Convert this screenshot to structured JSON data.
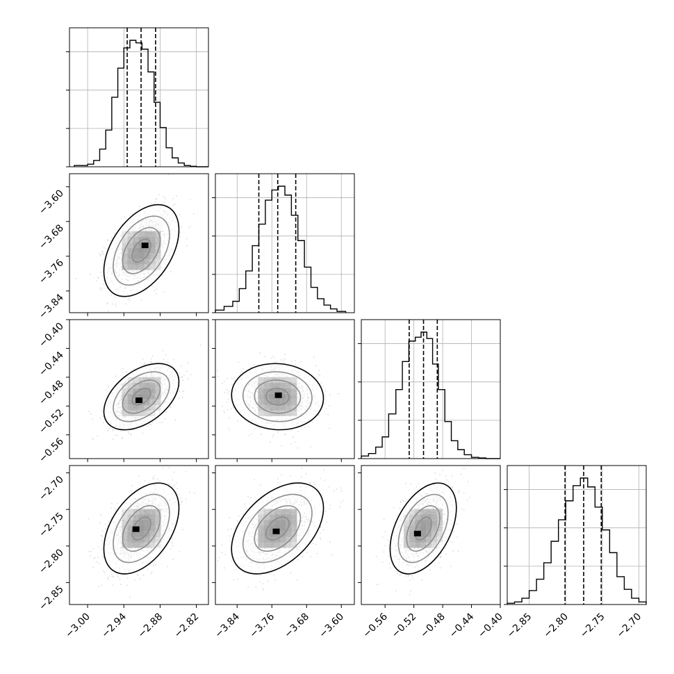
{
  "chart_data": {
    "type": "corner",
    "parameters": [
      {
        "range": [
          -3.03,
          -2.8
        ],
        "ticks": [
          -3.0,
          -2.94,
          -2.88,
          -2.82
        ],
        "tick_labels": [
          "−3.00",
          "−2.94",
          "−2.88",
          "−2.82"
        ],
        "hist_bin_edges": [
          -3.022,
          -3.0,
          -2.99,
          -2.98,
          -2.97,
          -2.96,
          -2.95,
          -2.94,
          -2.93,
          -2.92,
          -2.91,
          -2.9,
          -2.89,
          -2.88,
          -2.87,
          -2.86,
          -2.85,
          -2.84,
          -2.83,
          -2.82,
          -2.81,
          -2.8
        ],
        "hist_counts": [
          0.01,
          0.02,
          0.05,
          0.14,
          0.29,
          0.55,
          0.78,
          0.94,
          1.0,
          0.98,
          0.93,
          0.75,
          0.51,
          0.31,
          0.15,
          0.07,
          0.03,
          0.01,
          0.004,
          0.0
        ],
        "quantiles": [
          -2.9345,
          -2.9115,
          -2.8875
        ]
      },
      {
        "range": [
          -3.89,
          -3.57
        ],
        "ticks": [
          -3.84,
          -3.76,
          -3.68,
          -3.6
        ],
        "tick_labels": [
          "−3.84",
          "−3.76",
          "−3.68",
          "−3.60"
        ],
        "hist_bin_edges": [
          -3.89,
          -3.87,
          -3.85,
          -3.835,
          -3.82,
          -3.805,
          -3.79,
          -3.775,
          -3.76,
          -3.745,
          -3.73,
          -3.715,
          -3.7,
          -3.685,
          -3.67,
          -3.655,
          -3.64,
          -3.625,
          -3.61,
          -3.59
        ],
        "hist_counts": [
          0.02,
          0.05,
          0.09,
          0.19,
          0.33,
          0.53,
          0.7,
          0.89,
          0.97,
          1.0,
          0.93,
          0.77,
          0.57,
          0.36,
          0.2,
          0.11,
          0.06,
          0.03,
          0.01
        ],
        "quantiles": [
          -3.79,
          -3.7465,
          -3.705
        ]
      },
      {
        "range": [
          -0.593,
          -0.4
        ],
        "ticks": [
          -0.56,
          -0.52,
          -0.48,
          -0.44,
          -0.4
        ],
        "tick_labels": [
          "−0.56",
          "−0.52",
          "−0.48",
          "−0.44",
          "−0.40"
        ],
        "hist_bin_edges": [
          -0.593,
          -0.583,
          -0.573,
          -0.564,
          -0.555,
          -0.545,
          -0.536,
          -0.527,
          -0.518,
          -0.51,
          -0.502,
          -0.494,
          -0.486,
          -0.477,
          -0.468,
          -0.459,
          -0.45,
          -0.44,
          -0.43,
          -0.42,
          -0.41,
          -0.4
        ],
        "hist_counts": [
          0.02,
          0.04,
          0.09,
          0.17,
          0.35,
          0.54,
          0.76,
          0.92,
          0.95,
          0.99,
          0.94,
          0.74,
          0.54,
          0.29,
          0.14,
          0.07,
          0.03,
          0.01,
          0.005,
          0.0,
          0.0
        ],
        "quantiles": [
          -0.5265,
          -0.5066,
          -0.4875
        ]
      },
      {
        "range": [
          -2.88,
          -2.69
        ],
        "ticks": [
          -2.85,
          -2.8,
          -2.75,
          -2.7
        ],
        "tick_labels": [
          "−2.85",
          "−2.80",
          "−2.75",
          "−2.70"
        ],
        "hist_bin_edges": [
          -2.88,
          -2.87,
          -2.86,
          -2.85,
          -2.84,
          -2.83,
          -2.82,
          -2.81,
          -2.8,
          -2.79,
          -2.78,
          -2.77,
          -2.76,
          -2.75,
          -2.74,
          -2.73,
          -2.72,
          -2.71,
          -2.7,
          -2.69
        ],
        "hist_counts": [
          0.01,
          0.02,
          0.05,
          0.11,
          0.2,
          0.33,
          0.5,
          0.67,
          0.82,
          0.94,
          1.0,
          0.93,
          0.77,
          0.59,
          0.41,
          0.22,
          0.12,
          0.05,
          0.02
        ],
        "quantiles": [
          -2.801,
          -2.7755,
          -2.7515
        ]
      }
    ],
    "pairs": [
      {
        "x": 0,
        "y": 1,
        "center": [
          -2.911,
          -3.747
        ],
        "sigma": [
          0.027,
          0.046
        ],
        "corr": 0.45,
        "density_peak": [
          -2.905,
          -3.735
        ]
      },
      {
        "x": 0,
        "y": 2,
        "center": [
          -2.911,
          -0.507
        ],
        "sigma": [
          0.027,
          0.02
        ],
        "corr": 0.45,
        "density_peak": [
          -2.915,
          -0.512
        ]
      },
      {
        "x": 1,
        "y": 2,
        "center": [
          -3.747,
          -0.507
        ],
        "sigma": [
          0.046,
          0.02
        ],
        "corr": -0.05,
        "density_peak": [
          -3.745,
          -0.505
        ]
      },
      {
        "x": 0,
        "y": 3,
        "center": [
          -2.911,
          -2.776
        ],
        "sigma": [
          0.027,
          0.027
        ],
        "corr": 0.45,
        "density_peak": [
          -2.92,
          -2.777
        ]
      },
      {
        "x": 1,
        "y": 3,
        "center": [
          -3.747,
          -2.776
        ],
        "sigma": [
          0.046,
          0.027
        ],
        "corr": 0.45,
        "density_peak": [
          -3.75,
          -2.78
        ]
      },
      {
        "x": 2,
        "y": 3,
        "center": [
          -0.507,
          -2.776
        ],
        "sigma": [
          0.02,
          0.027
        ],
        "corr": 0.45,
        "density_peak": [
          -0.515,
          -2.783
        ]
      }
    ],
    "contour_levels_sigma": [
      0.5,
      1.0,
      1.5,
      2.0
    ],
    "grid": true,
    "legend": "none",
    "title": "",
    "colors": {
      "ink": "#000000",
      "grid": "#b0b0b0",
      "points": "#9a9a9a",
      "density": "#000000"
    }
  }
}
